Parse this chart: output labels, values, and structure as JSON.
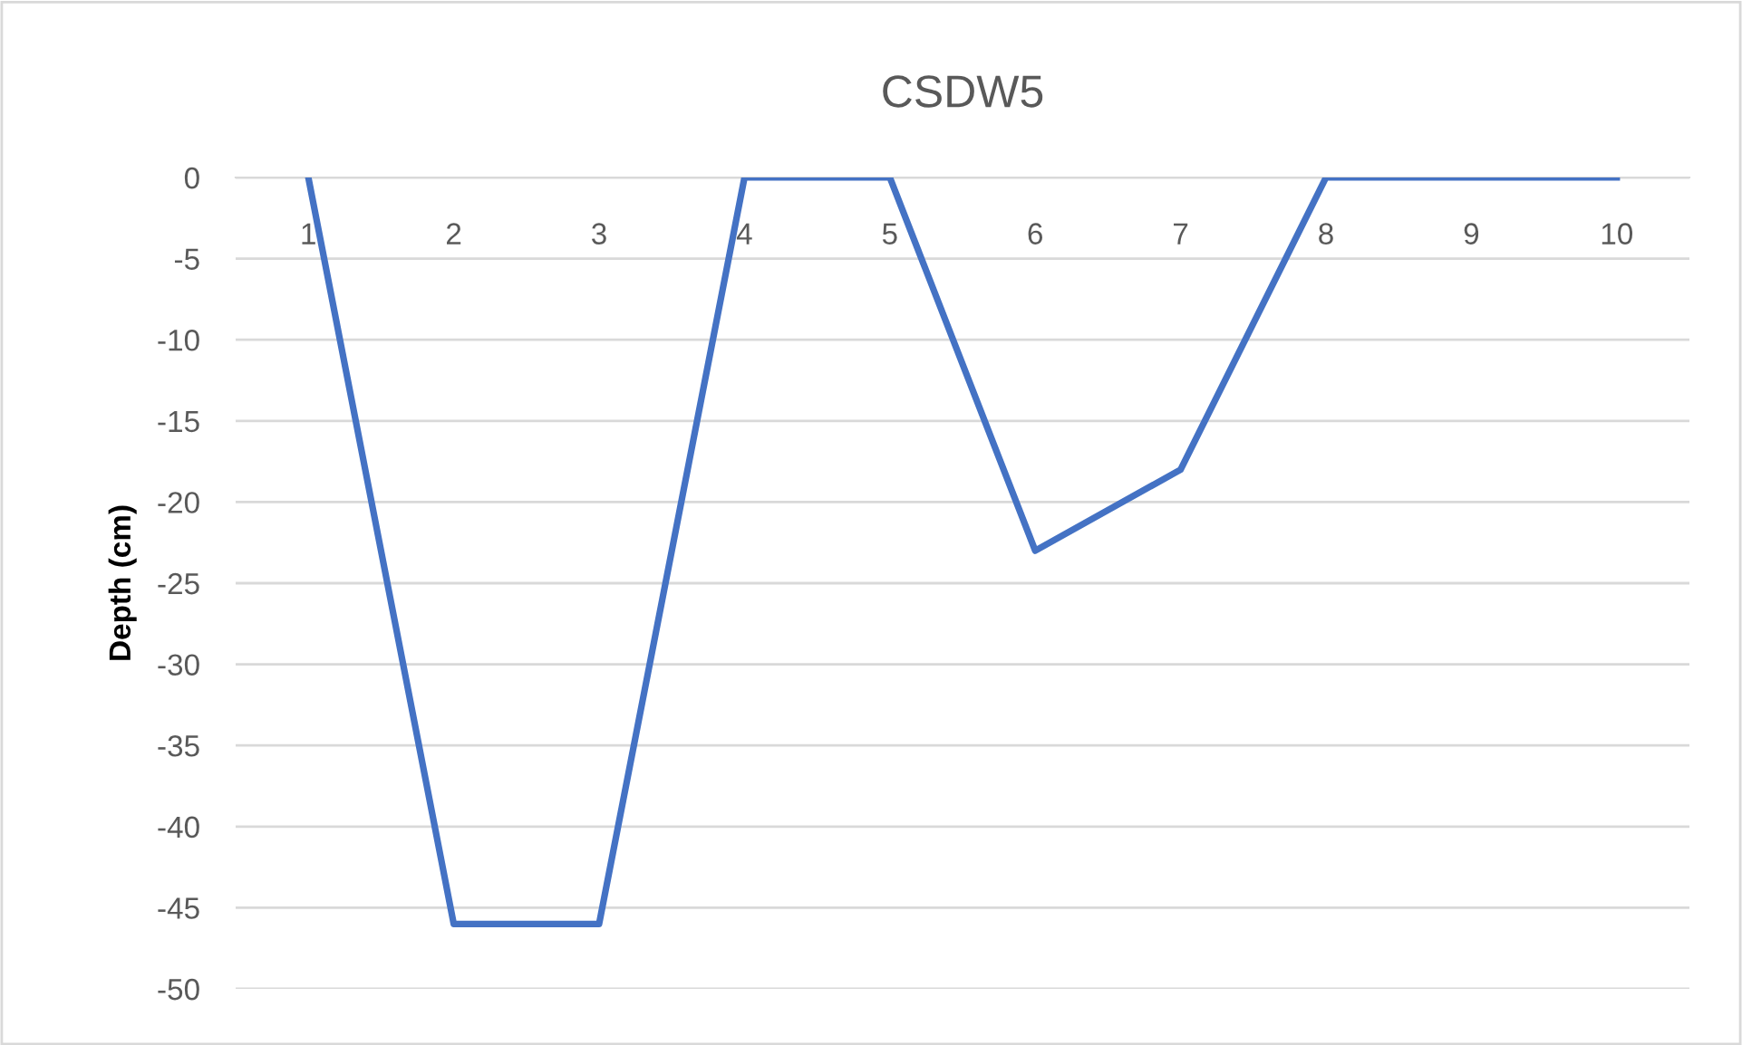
{
  "chart_data": {
    "type": "line",
    "title": "CSDW5",
    "ylabel": "Depth (cm)",
    "categories": [
      "1",
      "2",
      "3",
      "4",
      "5",
      "6",
      "7",
      "8",
      "9",
      "10"
    ],
    "series": [
      {
        "color": "#4472c4",
        "values": [
          0,
          -46,
          -46,
          0,
          0,
          -23,
          -18,
          0,
          0,
          0
        ]
      }
    ],
    "ylim": [
      -50,
      0
    ],
    "yticks": [
      -50,
      -45,
      -40,
      -35,
      -30,
      -25,
      -20,
      -15,
      -10,
      -5,
      0
    ],
    "grid": "y",
    "legend": false,
    "marker": "none",
    "line_style": "solid"
  }
}
